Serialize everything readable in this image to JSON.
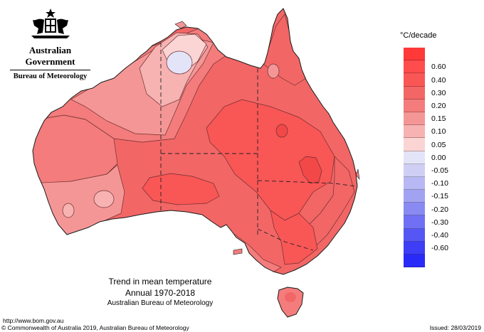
{
  "branding": {
    "crest_icon": "coat-of-arms-icon",
    "government": "Australian Government",
    "bureau": "Bureau of Meteorology"
  },
  "legend": {
    "unit": "°C/decade",
    "entries": [
      {
        "label": "",
        "color": "#ff3838"
      },
      {
        "label": "0.60",
        "color": "#ff4c4c"
      },
      {
        "label": "0.40",
        "color": "#f95656"
      },
      {
        "label": "0.30",
        "color": "#f36666"
      },
      {
        "label": "0.20",
        "color": "#f47c7c"
      },
      {
        "label": "0.15",
        "color": "#f59696"
      },
      {
        "label": "0.10",
        "color": "#f7b2b2"
      },
      {
        "label": "0.05",
        "color": "#fbd4d4"
      },
      {
        "label": "0.00",
        "color": "#e4e4f9"
      },
      {
        "label": "-0.05",
        "color": "#cfcff5"
      },
      {
        "label": "-0.10",
        "color": "#b8b8f4"
      },
      {
        "label": "-0.15",
        "color": "#a2a2f3"
      },
      {
        "label": "-0.20",
        "color": "#8a8af3"
      },
      {
        "label": "-0.30",
        "color": "#7070f4"
      },
      {
        "label": "-0.40",
        "color": "#5656f5"
      },
      {
        "label": "-0.60",
        "color": "#3e3ef7"
      },
      {
        "label": "",
        "color": "#2a2af8"
      }
    ]
  },
  "caption": {
    "title": "Trend in mean temperature",
    "period": "Annual 1970-2018",
    "agency": "Australian Bureau of Meteorology"
  },
  "footer": {
    "url": "http://www.bom.gov.au",
    "copyright": "© Commonwealth of Australia 2019, Australian Bureau of Meteorology",
    "issued": "Issued: 28/03/2019"
  }
}
